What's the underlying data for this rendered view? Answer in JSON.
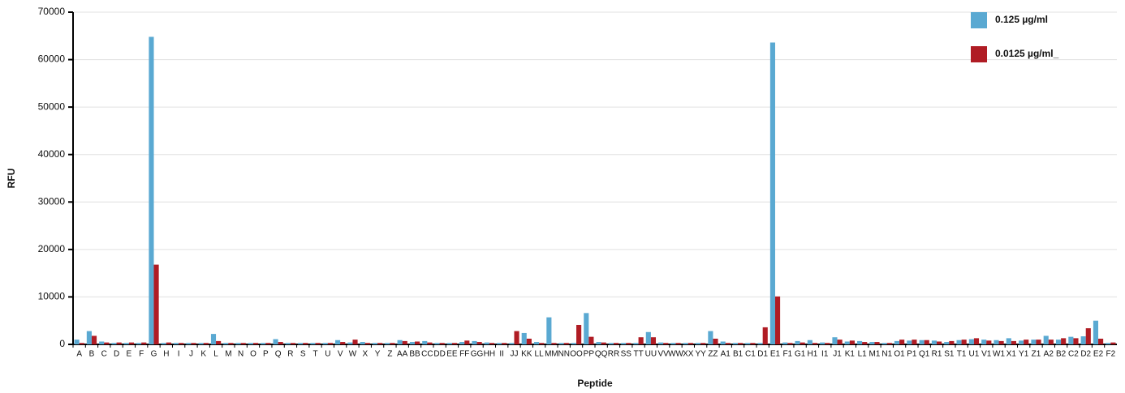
{
  "chart_data": {
    "type": "bar",
    "y_label": "RFU",
    "x_label": "Peptide",
    "categories": [
      "A",
      "B",
      "C",
      "D",
      "E",
      "F",
      "G",
      "H",
      "I",
      "J",
      "K",
      "L",
      "M",
      "N",
      "O",
      "P",
      "Q",
      "R",
      "S",
      "T",
      "U",
      "V",
      "W",
      "X",
      "Y",
      "Z",
      "AA",
      "BB",
      "CC",
      "DD",
      "EE",
      "FF",
      "GG",
      "HH",
      "II",
      "JJ",
      "KK",
      "LL",
      "MM",
      "NN",
      "OO",
      "PP",
      "QQ",
      "RR",
      "SS",
      "TT",
      "UU",
      "VV",
      "WW",
      "XX",
      "YY",
      "ZZ",
      "A1",
      "B1",
      "C1",
      "D1",
      "E1",
      "F1",
      "G1",
      "H1",
      "I1",
      "J1",
      "K1",
      "L1",
      "M1",
      "N1",
      "O1",
      "P1",
      "Q1",
      "R1",
      "S1",
      "T1",
      "U1",
      "V1",
      "W1",
      "X1",
      "Y1",
      "Z1",
      "A2",
      "B2",
      "C2",
      "D2",
      "E2",
      "F2"
    ],
    "series": [
      {
        "name": "0.125 µg/ml",
        "color": "#5aa9d2",
        "values": [
          1000,
          2800,
          600,
          300,
          300,
          300,
          64800,
          300,
          300,
          300,
          300,
          2200,
          300,
          300,
          300,
          300,
          1100,
          300,
          300,
          300,
          300,
          900,
          400,
          500,
          300,
          300,
          900,
          500,
          700,
          300,
          300,
          500,
          700,
          400,
          300,
          300,
          2400,
          500,
          5700,
          300,
          300,
          6600,
          500,
          300,
          300,
          300,
          2600,
          400,
          300,
          300,
          300,
          2800,
          600,
          300,
          300,
          300,
          63600,
          400,
          700,
          900,
          400,
          1500,
          600,
          700,
          500,
          300,
          700,
          800,
          900,
          800,
          500,
          900,
          1100,
          1000,
          900,
          1300,
          800,
          1000,
          1800,
          1000,
          1600,
          1700,
          5000,
          300
        ]
      },
      {
        "name": "0.0125 µg/ml_",
        "color": "#b01c24",
        "values": [
          300,
          1800,
          400,
          400,
          400,
          400,
          16800,
          400,
          300,
          300,
          300,
          700,
          300,
          300,
          300,
          300,
          500,
          300,
          300,
          300,
          300,
          500,
          1000,
          300,
          300,
          300,
          700,
          600,
          400,
          300,
          300,
          800,
          500,
          300,
          300,
          2800,
          1200,
          300,
          300,
          300,
          4100,
          1600,
          400,
          300,
          300,
          1500,
          1500,
          300,
          300,
          300,
          300,
          1200,
          300,
          300,
          300,
          3600,
          10100,
          300,
          400,
          300,
          300,
          1000,
          800,
          500,
          500,
          300,
          1000,
          1000,
          900,
          600,
          700,
          1000,
          1300,
          800,
          700,
          700,
          1000,
          1000,
          1000,
          1300,
          1300,
          3400,
          1200,
          400
        ]
      }
    ],
    "ylim": [
      0,
      70000
    ],
    "yticks": [
      0,
      10000,
      20000,
      30000,
      40000,
      50000,
      60000,
      70000
    ],
    "grid": true,
    "legend": "top-right"
  }
}
